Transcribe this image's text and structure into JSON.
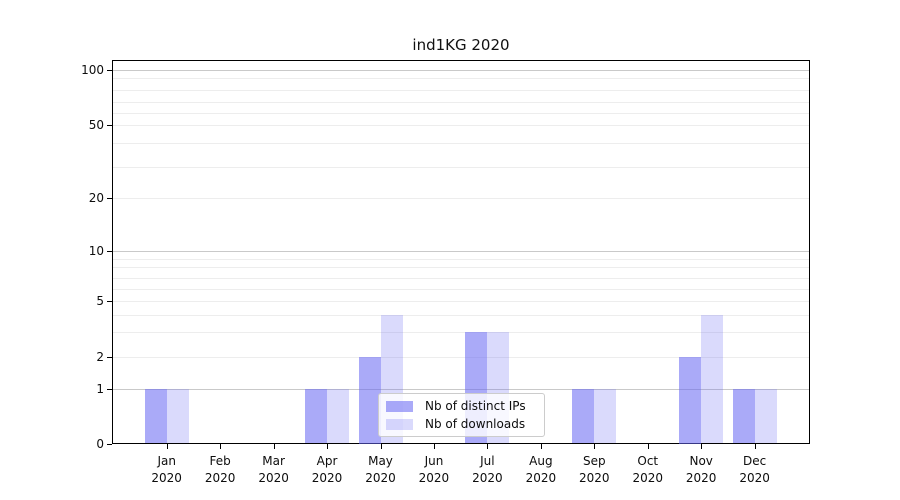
{
  "chart_data": {
    "type": "bar",
    "title": "ind1KG 2020",
    "categories": [
      "Jan",
      "Feb",
      "Mar",
      "Apr",
      "May",
      "Jun",
      "Jul",
      "Aug",
      "Sep",
      "Oct",
      "Nov",
      "Dec"
    ],
    "x_sublabel": "2020",
    "series": [
      {
        "name": "Nb of distinct IPs",
        "color": "rgba(100,100,242,0.55)",
        "values": [
          1,
          0,
          0,
          1,
          2,
          0,
          3,
          0,
          1,
          0,
          2,
          1
        ]
      },
      {
        "name": "Nb of downloads",
        "color": "rgba(100,100,242,0.24)",
        "values": [
          1,
          0,
          0,
          1,
          4,
          0,
          3,
          0,
          1,
          0,
          4,
          1
        ]
      }
    ],
    "ytick_labels": [
      "0",
      "1",
      "2",
      "5",
      "10",
      "20",
      "50",
      "100"
    ],
    "scale": "symlog-like (linear 0-1, compressed log above)",
    "ylim": [
      0,
      110
    ],
    "xlabel": "",
    "ylabel": "",
    "grid": "horizontal; darker lines at 1, 10, 100; faint minor lines at 2-9 and 20-90",
    "legend_position": "lower center",
    "colors": {
      "bar_dark_flat": "#a9a9f8",
      "bar_light_flat": "#d9d9fb",
      "major_grid": "#c9c9c9",
      "minor_grid": "#ededed",
      "spine": "#000000",
      "background": "#ffffff"
    }
  }
}
